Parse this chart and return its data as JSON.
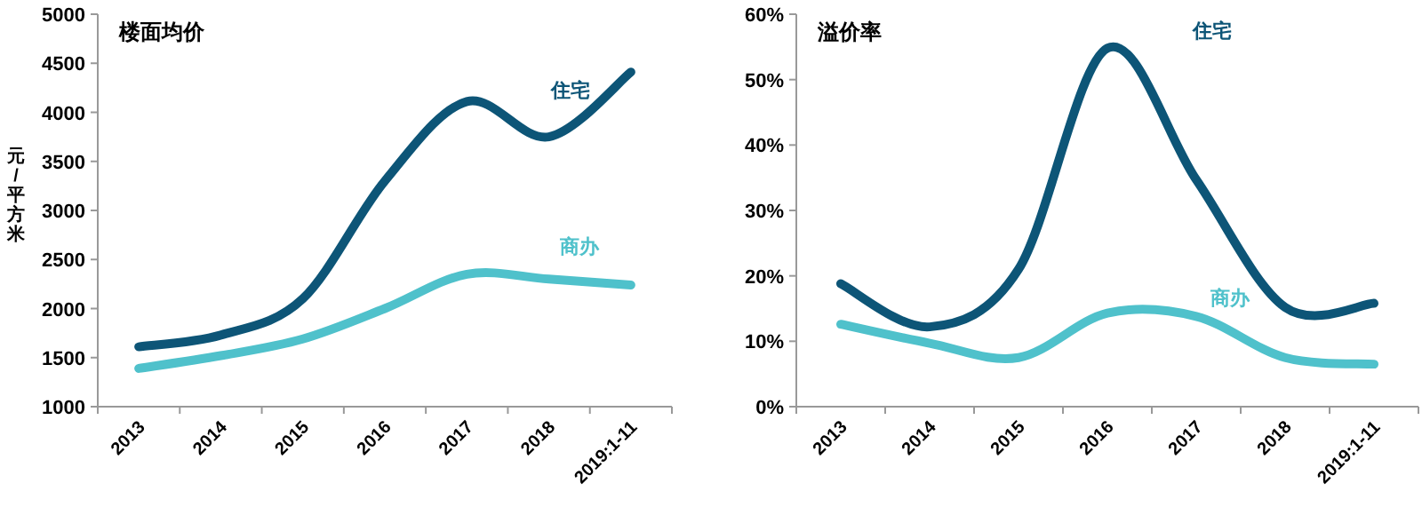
{
  "chart_data": [
    {
      "type": "line",
      "title": "楼面均价",
      "ylabel": "元/平方米",
      "categories": [
        "2013",
        "2014",
        "2015",
        "2016",
        "2017",
        "2018",
        "2019:1-11"
      ],
      "ylim": [
        1000,
        5000
      ],
      "yticks": [
        1000,
        1500,
        2000,
        2500,
        3000,
        3500,
        4000,
        4500,
        5000
      ],
      "grid": false,
      "marker": "none",
      "series": [
        {
          "name": "住宅",
          "color": "#0d5577",
          "values": [
            1610,
            1730,
            2100,
            3300,
            4110,
            3750,
            4410
          ]
        },
        {
          "name": "商办",
          "color": "#4fc1cb",
          "values": [
            1390,
            1520,
            1690,
            2000,
            2350,
            2300,
            2240
          ]
        }
      ]
    },
    {
      "type": "line",
      "title": "溢价率",
      "categories": [
        "2013",
        "2014",
        "2015",
        "2016",
        "2017",
        "2018",
        "2019:1-11"
      ],
      "ylim": [
        0,
        60
      ],
      "yticks": [
        {
          "value": 0,
          "label": "0%"
        },
        {
          "value": 10,
          "label": "10%"
        },
        {
          "value": 20,
          "label": "20%"
        },
        {
          "value": 30,
          "label": "30%"
        },
        {
          "value": 40,
          "label": "40%"
        },
        {
          "value": 50,
          "label": "50%"
        },
        {
          "value": 60,
          "label": "60%"
        }
      ],
      "grid": false,
      "marker": "none",
      "series": [
        {
          "name": "住宅",
          "color": "#0d5577",
          "values": [
            18.8,
            12.2,
            21,
            54.8,
            34.7,
            15.2,
            15.8
          ]
        },
        {
          "name": "商办",
          "color": "#4fc1cb",
          "values": [
            12.6,
            9.7,
            7.5,
            14.3,
            13.8,
            7.5,
            6.5
          ]
        }
      ]
    }
  ]
}
